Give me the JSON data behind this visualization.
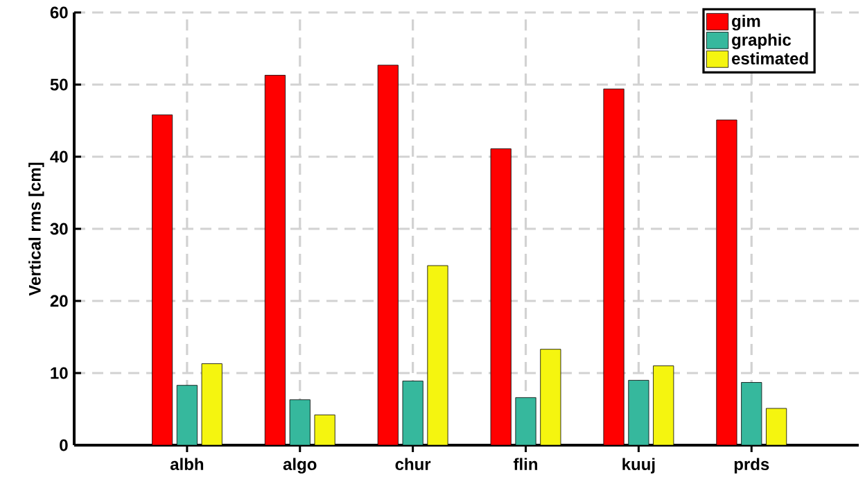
{
  "chart_data": {
    "type": "bar",
    "categories": [
      "albh",
      "algo",
      "chur",
      "flin",
      "kuuj",
      "prds"
    ],
    "series": [
      {
        "name": "gim",
        "color": "#ff0000",
        "values": [
          45.8,
          51.3,
          52.7,
          41.1,
          49.4,
          45.1
        ]
      },
      {
        "name": "graphic",
        "color": "#36b89d",
        "values": [
          8.3,
          6.3,
          8.9,
          6.6,
          9.0,
          8.7
        ]
      },
      {
        "name": "estimated",
        "color": "#f5f50f",
        "values": [
          11.3,
          4.2,
          24.9,
          13.3,
          11.0,
          5.1
        ]
      }
    ],
    "ylabel": "Vertical rms  [cm]",
    "ylim": [
      0,
      60
    ],
    "yticks": [
      0,
      10,
      20,
      30,
      40,
      50,
      60
    ],
    "grid": true,
    "legend": "top right"
  }
}
